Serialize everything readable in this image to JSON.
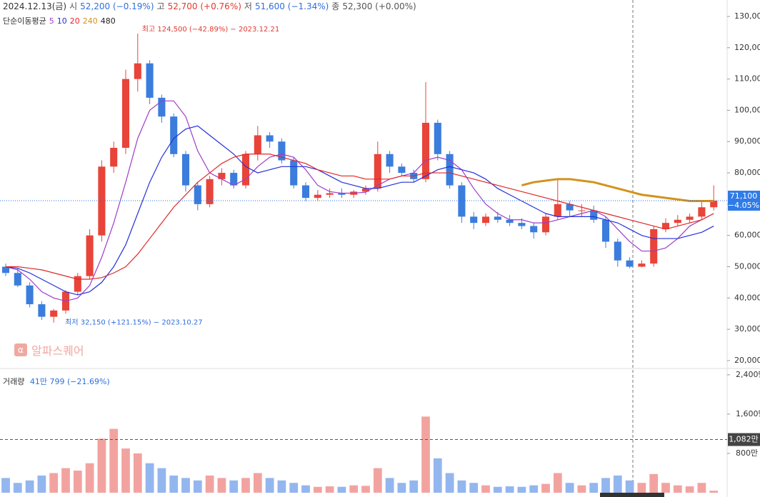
{
  "chart_data": {
    "type": "candlestick",
    "header": {
      "date": "2024.12.13(금)",
      "items": [
        {
          "label": "시",
          "value": "52,200 (−0.19%)",
          "tone": "blue"
        },
        {
          "label": "고",
          "value": "52,700 (+0.76%)",
          "tone": "red"
        },
        {
          "label": "저",
          "value": "51,600 (−1.34%)",
          "tone": "blue"
        },
        {
          "label": "종",
          "value": "52,300 (+0.00%)",
          "tone": "grey"
        }
      ]
    },
    "ma_title": "단순이동평균",
    "watermark": "알파스퀘어",
    "annotations": {
      "high": "최고 124,500 (−42.89%) − 2023.12.21",
      "low": "최저 32,150 (+121.15%) − 2023.10.27"
    },
    "open": [
      50000,
      48000,
      44000,
      38000,
      34000,
      36000,
      42000,
      47000,
      60000,
      82000,
      88000,
      110000,
      115000,
      104000,
      98000,
      86000,
      76000,
      70000,
      78000,
      80000,
      76000,
      86000,
      92000,
      90000,
      84000,
      76000,
      72000,
      73000,
      73500,
      73000,
      74000,
      75000,
      86000,
      82000,
      80000,
      78000,
      96000,
      86000,
      76000,
      66000,
      64000,
      66000,
      65000,
      64000,
      63000,
      61000,
      66000,
      70000,
      68000,
      68000,
      65000,
      58000,
      52000,
      50000,
      51000,
      62000,
      64000,
      65000,
      66000,
      69000
    ],
    "high": [
      51000,
      49500,
      45000,
      39000,
      36500,
      42500,
      48000,
      62000,
      84000,
      90000,
      113000,
      124500,
      116000,
      105000,
      99000,
      87000,
      77000,
      79000,
      81500,
      81000,
      87000,
      95000,
      93000,
      91000,
      85000,
      77000,
      74500,
      75000,
      75000,
      74500,
      76000,
      90000,
      87000,
      83000,
      81000,
      109000,
      97000,
      87000,
      77000,
      67500,
      67000,
      67500,
      66500,
      65500,
      64000,
      67000,
      78000,
      71000,
      70000,
      69500,
      66000,
      59000,
      53000,
      52000,
      63000,
      65500,
      66500,
      67000,
      71000,
      76000
    ],
    "low": [
      47000,
      43500,
      37000,
      33000,
      32150,
      35000,
      41000,
      46000,
      58000,
      80000,
      86000,
      106000,
      102000,
      96000,
      85000,
      74000,
      68000,
      69000,
      76000,
      75000,
      75000,
      84000,
      88000,
      83000,
      75000,
      71000,
      71000,
      72000,
      72000,
      72000,
      73000,
      74000,
      80000,
      79000,
      77000,
      77000,
      84000,
      75000,
      64000,
      62000,
      63000,
      64000,
      63000,
      62000,
      59000,
      60000,
      65000,
      66000,
      66000,
      64000,
      56000,
      50000,
      49500,
      49800,
      50000,
      61000,
      63000,
      64000,
      65000,
      68000
    ],
    "close": [
      48000,
      44000,
      38000,
      34000,
      36000,
      42000,
      47000,
      60000,
      82000,
      88000,
      110000,
      115000,
      104000,
      98000,
      86000,
      76000,
      70000,
      78000,
      80000,
      76000,
      86000,
      92000,
      90000,
      84000,
      76000,
      72000,
      73000,
      73500,
      73000,
      74000,
      75000,
      86000,
      82000,
      80000,
      78000,
      96000,
      86000,
      76000,
      66000,
      64000,
      66000,
      65000,
      64000,
      63000,
      61000,
      66000,
      70000,
      68000,
      68000,
      65000,
      58000,
      52000,
      50000,
      51000,
      62000,
      64000,
      65000,
      66000,
      69000,
      71100
    ],
    "moving_averages": [
      {
        "name": "5",
        "color": "#a03cc8",
        "values": [
          50000,
          49000,
          46000,
          42000,
          40000,
          39000,
          40000,
          44000,
          53000,
          64000,
          77000,
          91000,
          100000,
          103000,
          103000,
          98000,
          87000,
          80000,
          78000,
          76000,
          78000,
          82000,
          85000,
          86000,
          85000,
          81000,
          76000,
          74000,
          73500,
          73500,
          73800,
          76000,
          78000,
          79000,
          80000,
          84000,
          85000,
          84000,
          81000,
          75000,
          70000,
          67000,
          65000,
          65000,
          64000,
          64000,
          65000,
          66000,
          67000,
          68000,
          66000,
          62000,
          58000,
          55000,
          55000,
          56000,
          59000,
          63000,
          65000,
          67000
        ]
      },
      {
        "name": "10",
        "color": "#2430d8",
        "values": [
          50000,
          49500,
          48000,
          46000,
          44000,
          42000,
          41000,
          42000,
          45000,
          50000,
          57000,
          67000,
          77000,
          85000,
          91000,
          94000,
          95000,
          92000,
          89000,
          86000,
          82000,
          80000,
          81000,
          82000,
          82000,
          82000,
          81000,
          79000,
          77000,
          76000,
          75000,
          75000,
          76000,
          77000,
          77000,
          79000,
          81000,
          82000,
          81000,
          80000,
          78000,
          75000,
          73000,
          71000,
          69000,
          67000,
          66000,
          66000,
          66000,
          66000,
          65000,
          64000,
          62000,
          60000,
          59000,
          59000,
          59000,
          60000,
          61000,
          63000
        ]
      },
      {
        "name": "20",
        "color": "#e02828",
        "values": [
          50000,
          50000,
          49500,
          49000,
          48000,
          47000,
          46000,
          46000,
          46500,
          48000,
          50000,
          54000,
          59000,
          64000,
          69000,
          73000,
          77000,
          80000,
          83000,
          85000,
          86000,
          86000,
          86000,
          85000,
          84000,
          83000,
          81000,
          80000,
          79000,
          79000,
          78000,
          78000,
          78000,
          79000,
          79000,
          80000,
          80000,
          80000,
          79000,
          78000,
          77000,
          76000,
          75000,
          74000,
          73000,
          72000,
          71000,
          70000,
          69000,
          68000,
          67000,
          66000,
          65000,
          64000,
          63000,
          62000,
          63000,
          64000,
          65000,
          67000
        ]
      },
      {
        "name": "240",
        "color": "#d4921c",
        "values": [
          null,
          null,
          null,
          null,
          null,
          null,
          null,
          null,
          null,
          null,
          null,
          null,
          null,
          null,
          null,
          null,
          null,
          null,
          null,
          null,
          null,
          null,
          null,
          null,
          null,
          null,
          null,
          null,
          null,
          null,
          null,
          null,
          null,
          null,
          null,
          null,
          null,
          null,
          null,
          null,
          null,
          null,
          null,
          76000,
          77000,
          77500,
          78000,
          78000,
          77500,
          77000,
          76000,
          75000,
          74000,
          73000,
          72500,
          72000,
          71500,
          71000,
          71000,
          71000
        ]
      },
      {
        "name": "480",
        "color": "#222222"
      }
    ],
    "ylim": [
      17700,
      135250
    ],
    "yticks": [
      {
        "value": 20000,
        "label": "20,000"
      },
      {
        "value": 30000,
        "label": "30,000"
      },
      {
        "value": 40000,
        "label": "40,000"
      },
      {
        "value": 50000,
        "label": "50,000"
      },
      {
        "value": 60000,
        "label": "60,000"
      },
      {
        "value": 70000,
        "label": "70,000"
      },
      {
        "value": 80000,
        "label": "80,000"
      },
      {
        "value": 90000,
        "label": "90,000"
      },
      {
        "value": 100000,
        "label": "100,000"
      },
      {
        "value": 110000,
        "label": "110,000"
      },
      {
        "value": 120000,
        "label": "120,000"
      },
      {
        "value": 130000,
        "label": "130,000"
      }
    ],
    "last_price": {
      "value": 71100,
      "label": "71,100",
      "change": "−4.05%"
    },
    "volume": {
      "title": "거래량",
      "current": "41만 799 (−21.69%)",
      "values": [
        300,
        200,
        250,
        350,
        400,
        500,
        450,
        600,
        1100,
        1300,
        900,
        800,
        600,
        500,
        350,
        300,
        250,
        350,
        300,
        250,
        300,
        400,
        300,
        250,
        200,
        150,
        120,
        130,
        120,
        150,
        140,
        500,
        300,
        200,
        250,
        1550,
        700,
        400,
        250,
        200,
        150,
        120,
        130,
        120,
        150,
        180,
        400,
        200,
        150,
        200,
        300,
        350,
        250,
        200,
        380,
        200,
        150,
        130,
        200,
        41.0799
      ],
      "ylim": [
        0,
        2500
      ],
      "yticks": [
        {
          "value": 800,
          "label": "800만"
        },
        {
          "value": 1600,
          "label": "1,600만"
        },
        {
          "value": 2400,
          "label": "2,400만"
        }
      ],
      "marker": {
        "value": 1082,
        "label": "1,082만"
      }
    }
  }
}
